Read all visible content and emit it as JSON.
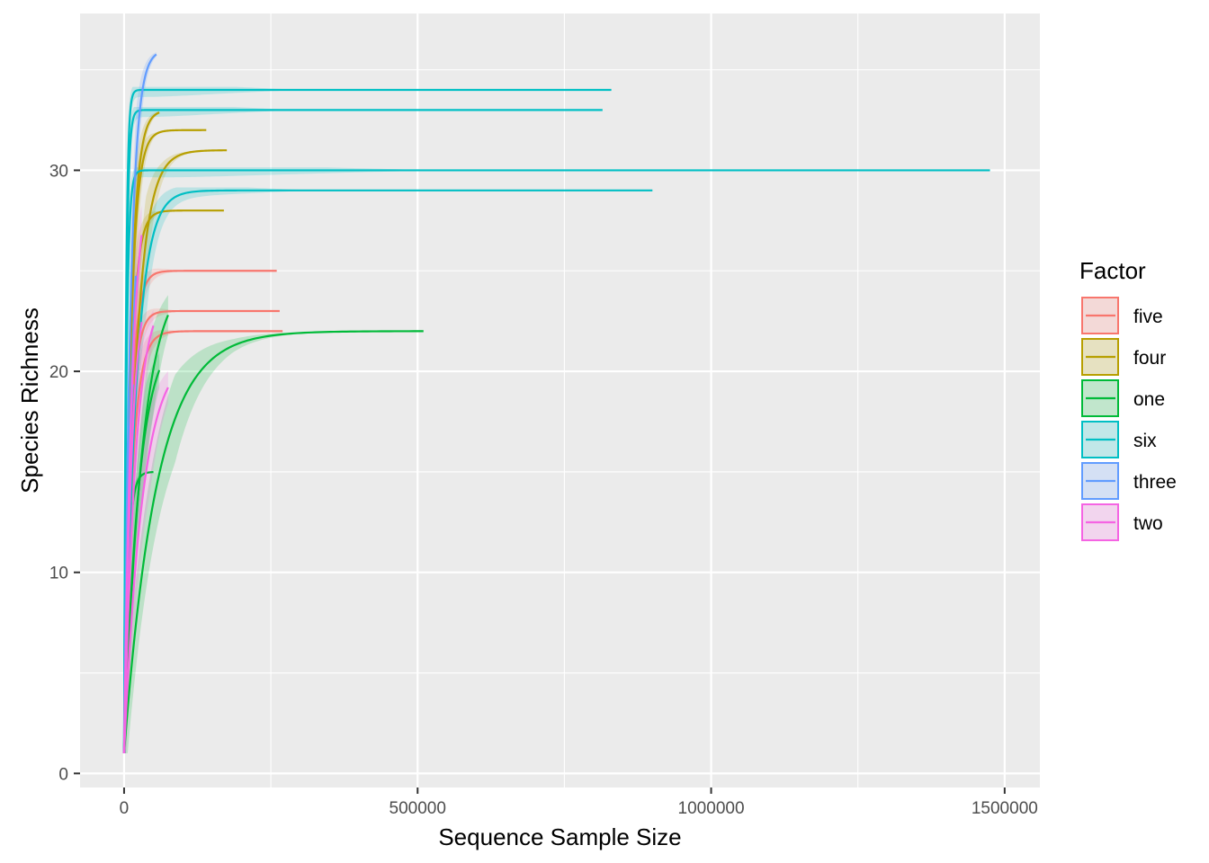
{
  "chart_data": {
    "type": "line",
    "title": "",
    "xlabel": "Sequence Sample Size",
    "ylabel": "Species Richness",
    "xlim": [
      -75000,
      1560000
    ],
    "ylim": [
      -0.7,
      37.8
    ],
    "x_ticks": [
      0,
      500000,
      1000000,
      1500000
    ],
    "x_tick_labels": [
      "0",
      "500000",
      "1000000",
      "1500000"
    ],
    "y_ticks": [
      0,
      10,
      20,
      30
    ],
    "y_tick_labels": [
      "0",
      "10",
      "20",
      "30"
    ],
    "grid": true,
    "legend": {
      "title": "Factor",
      "position": "right",
      "entries": [
        {
          "name": "five",
          "color": "#F8766D"
        },
        {
          "name": "four",
          "color": "#B79F00"
        },
        {
          "name": "one",
          "color": "#00BA38"
        },
        {
          "name": "six",
          "color": "#00BFC4"
        },
        {
          "name": "three",
          "color": "#619CFF"
        },
        {
          "name": "two",
          "color": "#F564E3"
        }
      ]
    },
    "series": [
      {
        "name": "five",
        "curves": [
          {
            "end_x": 260000,
            "end_y": 25,
            "k": 0.15
          },
          {
            "end_x": 265000,
            "end_y": 23,
            "k": 0.15
          },
          {
            "end_x": 270000,
            "end_y": 22,
            "k": 0.2
          }
        ]
      },
      {
        "name": "four",
        "curves": [
          {
            "end_x": 140000,
            "end_y": 32,
            "k": 0.15
          },
          {
            "end_x": 175000,
            "end_y": 31,
            "k": 0.3
          },
          {
            "end_x": 170000,
            "end_y": 28,
            "k": 0.15
          },
          {
            "end_x": 60000,
            "end_y": 33,
            "k": 0.15
          }
        ]
      },
      {
        "name": "one",
        "curves": [
          {
            "end_x": 510000,
            "end_y": 22,
            "k": 0.9
          },
          {
            "end_x": 75000,
            "end_y": 25,
            "k": 0.5
          },
          {
            "end_x": 50000,
            "end_y": 15,
            "k": 0.1
          },
          {
            "end_x": 60000,
            "end_y": 22,
            "k": 0.4
          }
        ]
      },
      {
        "name": "six",
        "curves": [
          {
            "end_x": 1475000,
            "end_y": 30,
            "k": 0.04
          },
          {
            "end_x": 900000,
            "end_y": 29,
            "k": 0.3
          },
          {
            "end_x": 830000,
            "end_y": 34,
            "k": 0.02
          },
          {
            "end_x": 815000,
            "end_y": 33,
            "k": 0.03
          }
        ]
      },
      {
        "name": "three",
        "curves": [
          {
            "end_x": 55000,
            "end_y": 36,
            "k": 0.15
          },
          {
            "end_x": 20000,
            "end_y": 32,
            "k": 0.2
          },
          {
            "end_x": 15000,
            "end_y": 25,
            "k": 0.15
          }
        ]
      },
      {
        "name": "two",
        "curves": [
          {
            "end_x": 75000,
            "end_y": 21,
            "k": 0.5
          },
          {
            "end_x": 50000,
            "end_y": 24,
            "k": 0.3
          },
          {
            "end_x": 30000,
            "end_y": 25,
            "k": 0.2
          },
          {
            "end_x": 30000,
            "end_y": 30,
            "k": 0.2
          }
        ]
      }
    ]
  }
}
